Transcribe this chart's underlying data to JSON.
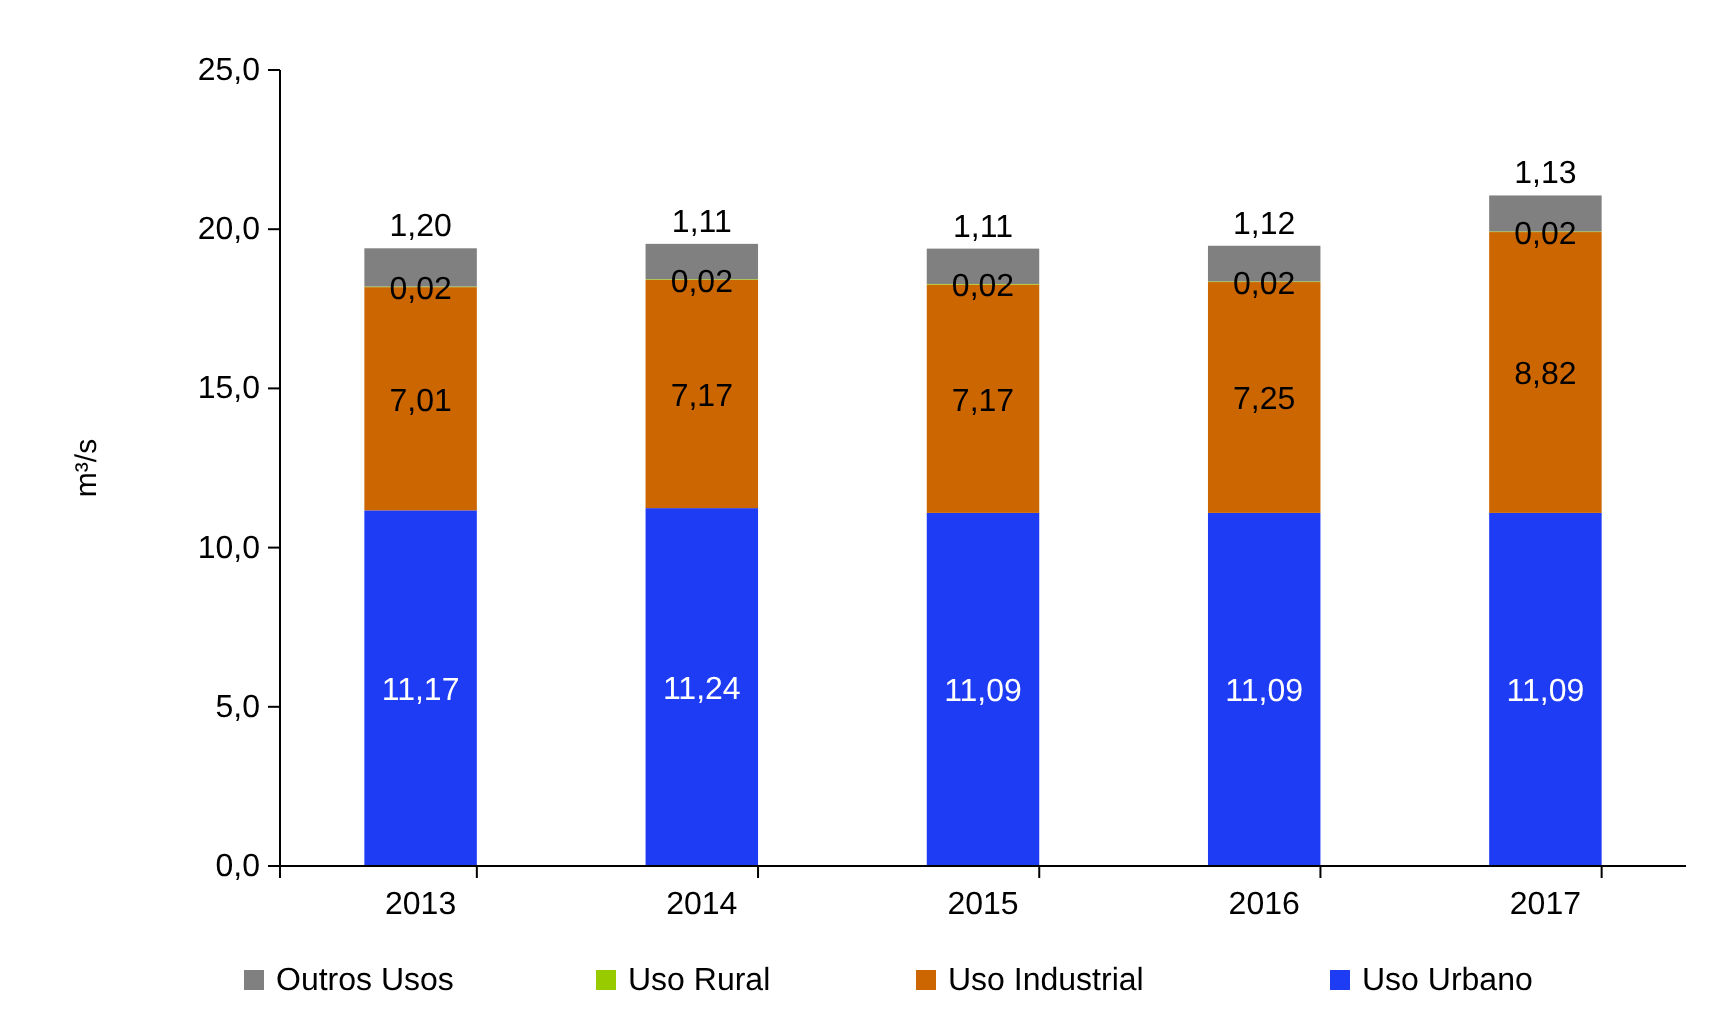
{
  "chart_data": {
    "type": "bar",
    "stacked": true,
    "ylabel": "m³/s",
    "categories": [
      "2013",
      "2014",
      "2015",
      "2016",
      "2017"
    ],
    "series": [
      {
        "name": "Uso Urbano",
        "color": "#1f3cf5",
        "values": [
          11.17,
          11.24,
          11.09,
          11.09,
          11.09
        ],
        "value_labels": [
          "11,17",
          "11,24",
          "11,09",
          "11,09",
          "11,09"
        ]
      },
      {
        "name": "Uso Industrial",
        "color": "#cc6600",
        "values": [
          7.01,
          7.17,
          7.17,
          7.25,
          8.82
        ],
        "value_labels": [
          "7,01",
          "7,17",
          "7,17",
          "7,25",
          "8,82"
        ]
      },
      {
        "name": "Uso Rural",
        "color": "#99cc00",
        "values": [
          0.02,
          0.02,
          0.02,
          0.02,
          0.02
        ],
        "value_labels": [
          "0,02",
          "0,02",
          "0,02",
          "0,02",
          "0,02"
        ]
      },
      {
        "name": "Outros Usos",
        "color": "#808080",
        "values": [
          1.2,
          1.11,
          1.11,
          1.12,
          1.13
        ],
        "value_labels": [
          "1,20",
          "1,11",
          "1,11",
          "1,12",
          "1,13"
        ]
      }
    ],
    "ylim": [
      0,
      25
    ],
    "yticks": [
      {
        "value": 0,
        "label": "0,0"
      },
      {
        "value": 5,
        "label": "5,0"
      },
      {
        "value": 10,
        "label": "10,0"
      },
      {
        "value": 15,
        "label": "15,0"
      },
      {
        "value": 20,
        "label": "20,0"
      },
      {
        "value": 25,
        "label": "25,0"
      }
    ],
    "grid": false,
    "legend": "bottom"
  }
}
